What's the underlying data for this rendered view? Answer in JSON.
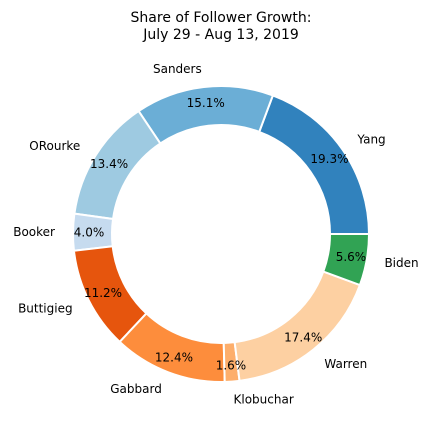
{
  "chart_data": {
    "type": "pie",
    "variant": "donut",
    "title_line1": "Share of Follower Growth:",
    "title_line2": "July 29 - Aug 13, 2019",
    "start_angle_deg": 0,
    "direction": "counterclockwise",
    "slices": [
      {
        "label": "Yang",
        "value": 19.3,
        "pct_label": "19.3%",
        "color": "#3182bd"
      },
      {
        "label": "Sanders",
        "value": 15.1,
        "pct_label": "15.1%",
        "color": "#6baed6"
      },
      {
        "label": "ORourke",
        "value": 13.4,
        "pct_label": "13.4%",
        "color": "#9ecae1"
      },
      {
        "label": "Booker",
        "value": 4.0,
        "pct_label": "4.0%",
        "color": "#c6dbef"
      },
      {
        "label": "Buttigieg",
        "value": 11.2,
        "pct_label": "11.2%",
        "color": "#e6550d"
      },
      {
        "label": "Gabbard",
        "value": 12.4,
        "pct_label": "12.4%",
        "color": "#fd8d3c"
      },
      {
        "label": "Klobuchar",
        "value": 1.6,
        "pct_label": "1.6%",
        "color": "#fdae6b"
      },
      {
        "label": "Warren",
        "value": 17.4,
        "pct_label": "17.4%",
        "color": "#fdd0a2"
      },
      {
        "label": "Biden",
        "value": 5.6,
        "pct_label": "5.6%",
        "color": "#31a354"
      }
    ],
    "legend": "none"
  }
}
